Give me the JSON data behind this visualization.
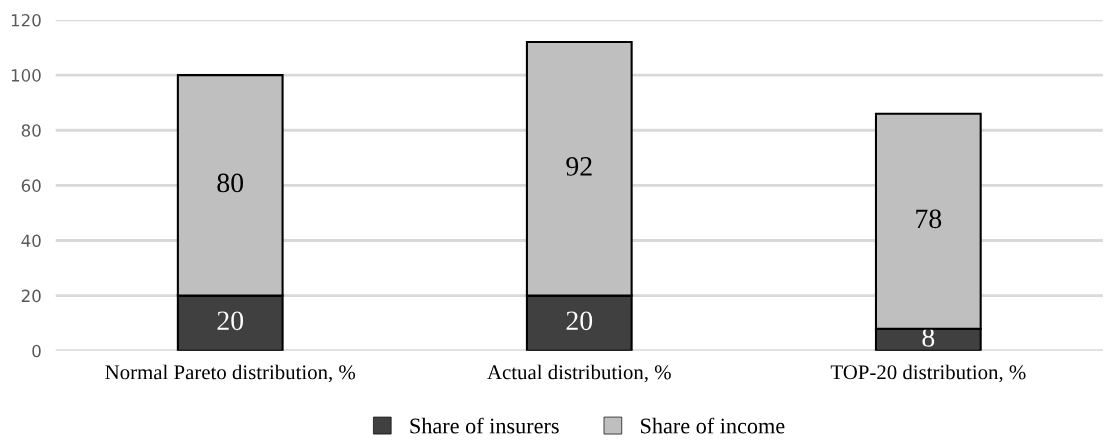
{
  "chart_data": {
    "type": "bar",
    "stacked": true,
    "categories": [
      "Normal Pareto distribution, %",
      "Actual distribution, %",
      "TOP-20 distribution, %"
    ],
    "series": [
      {
        "name": "Share of insurers",
        "color": "#404040",
        "values": [
          20,
          20,
          8
        ]
      },
      {
        "name": "Share of income",
        "color": "#bfbfbf",
        "values": [
          80,
          92,
          78
        ]
      }
    ],
    "ylim": [
      0,
      120
    ],
    "yticks": [
      0,
      20,
      40,
      60,
      80,
      100,
      120
    ],
    "grid": "y",
    "legend": "bottom",
    "data_labels": true
  }
}
